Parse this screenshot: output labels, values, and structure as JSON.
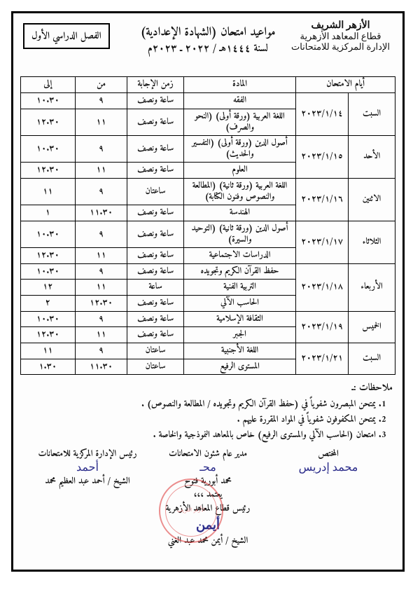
{
  "org": {
    "line1": "الأزهر الشريف",
    "line2": "قطاع المعاهد الأزهرية",
    "line3": "الإدارة المركزية للامتحانات"
  },
  "semester": "الفصل الدراسي الأول",
  "title": "مواعيد امتحان (الشهادة الإعدادية)",
  "subtitle": "لسنة ١٤٤٤هـ / ٢٠٢٢ ـ ٢٠٢٣م",
  "columns": {
    "days": "أيام الامتحان",
    "subject": "المادة",
    "duration": "زمن الإجابة",
    "from": "من",
    "to": "إلى"
  },
  "rows": [
    {
      "day": "السبت",
      "date": "٢٠٢٣/١/١٤",
      "subject": "الفقه",
      "dur": "ساعة ونصف",
      "from": "٩",
      "to": "١٠.٣٠"
    },
    {
      "day": "",
      "date": "",
      "subject": "اللغة العربية (ورقة أولى) (النحو والصرف)",
      "dur": "ساعة ونصف",
      "from": "١١",
      "to": "١٢.٣٠"
    },
    {
      "day": "الأحد",
      "date": "٢٠٢٣/١/١٥",
      "subject": "أصول الدين (ورقة أولى) (التفسير والحديث)",
      "dur": "ساعة ونصف",
      "from": "٩",
      "to": "١٠.٣٠"
    },
    {
      "day": "",
      "date": "",
      "subject": "العلوم",
      "dur": "ساعة ونصف",
      "from": "١١",
      "to": "١٢.٣٠"
    },
    {
      "day": "الاثنين",
      "date": "٢٠٢٣/١/١٦",
      "subject": "اللغة العربية (ورقة ثانية) (المطالعة والنصوص وفنون الكتابة)",
      "dur": "ساعتان",
      "from": "٩",
      "to": "١١"
    },
    {
      "day": "",
      "date": "",
      "subject": "الهندسة",
      "dur": "ساعة ونصف",
      "from": "١١.٣٠",
      "to": "١"
    },
    {
      "day": "الثلاثاء",
      "date": "٢٠٢٣/١/١٧",
      "subject": "أصول الدين (ورقة ثانية) (التوحيد والسيرة)",
      "dur": "ساعة ونصف",
      "from": "٩",
      "to": "١٠.٣٠"
    },
    {
      "day": "",
      "date": "",
      "subject": "الدراسات الاجتماعية",
      "dur": "ساعة ونصف",
      "from": "١١",
      "to": "١٢.٣٠"
    },
    {
      "day": "الأربعاء",
      "date": "٢٠٢٣/١/١٨",
      "subject": "حفظ القرآن الكريم وتجويده",
      "dur": "ساعة ونصف",
      "from": "٩",
      "to": "١٠.٣٠"
    },
    {
      "day": "",
      "date": "",
      "subject": "التربية الفنية",
      "dur": "ساعة",
      "from": "١١",
      "to": "١٢"
    },
    {
      "day": "",
      "date": "",
      "subject": "الحاسب الآلي",
      "dur": "ساعة ونصف",
      "from": "١٢.٣٠",
      "to": "٢"
    },
    {
      "day": "الخميس",
      "date": "٢٠٢٣/١/١٩",
      "subject": "الثقافة الإسلامية",
      "dur": "ساعة ونصف",
      "from": "٩",
      "to": "١٠.٣٠"
    },
    {
      "day": "",
      "date": "",
      "subject": "الجبر",
      "dur": "ساعة ونصف",
      "from": "١١",
      "to": "١٢.٣٠"
    },
    {
      "day": "السبت",
      "date": "٢٠٢٣/١/٢١",
      "subject": "اللغة الأجنبية",
      "dur": "ساعتان",
      "from": "٩",
      "to": "١١"
    },
    {
      "day": "",
      "date": "",
      "subject": "المستوى الرفيع",
      "dur": "ساعتان",
      "from": "١١.٣٠",
      "to": "١.٣٠"
    }
  ],
  "daySpans": [
    2,
    2,
    2,
    2,
    3,
    2,
    2
  ],
  "notes": {
    "title": "ملاحظات :ـ",
    "items": [
      "يمتحن المبصرون شفوياً في (حفظ القرآن الكريم وتجويده / المطالعة والنصوص) .",
      "يمتحن المكفوفون شفوياً في المواد المقررة عليهم .",
      "امتحان (الحاسب الآلي والمستوى الرفيع) خاص بالمعاهد النموذجية والخاصة ."
    ]
  },
  "signatures": {
    "c1": {
      "title": "المختص",
      "scribble": "محمد إدريس"
    },
    "c2": {
      "title": "مدير عام شئون الامتحانات",
      "scribble": "محـ",
      "name": "محمد أبورية فتوح"
    },
    "c3": {
      "title": "رئيس الإدارة المركزية للامتحانات",
      "scribble": "أحمد",
      "name": "الشيخ / أحمد عبد العظيم محمد"
    }
  },
  "approve": {
    "line1": "يعتمد ،،،",
    "line2": "رئيس قطاع المعاهد الأزهرية",
    "sign": "أيمن",
    "line3": "الشيخ / أيمن محمد عبد الغني"
  }
}
